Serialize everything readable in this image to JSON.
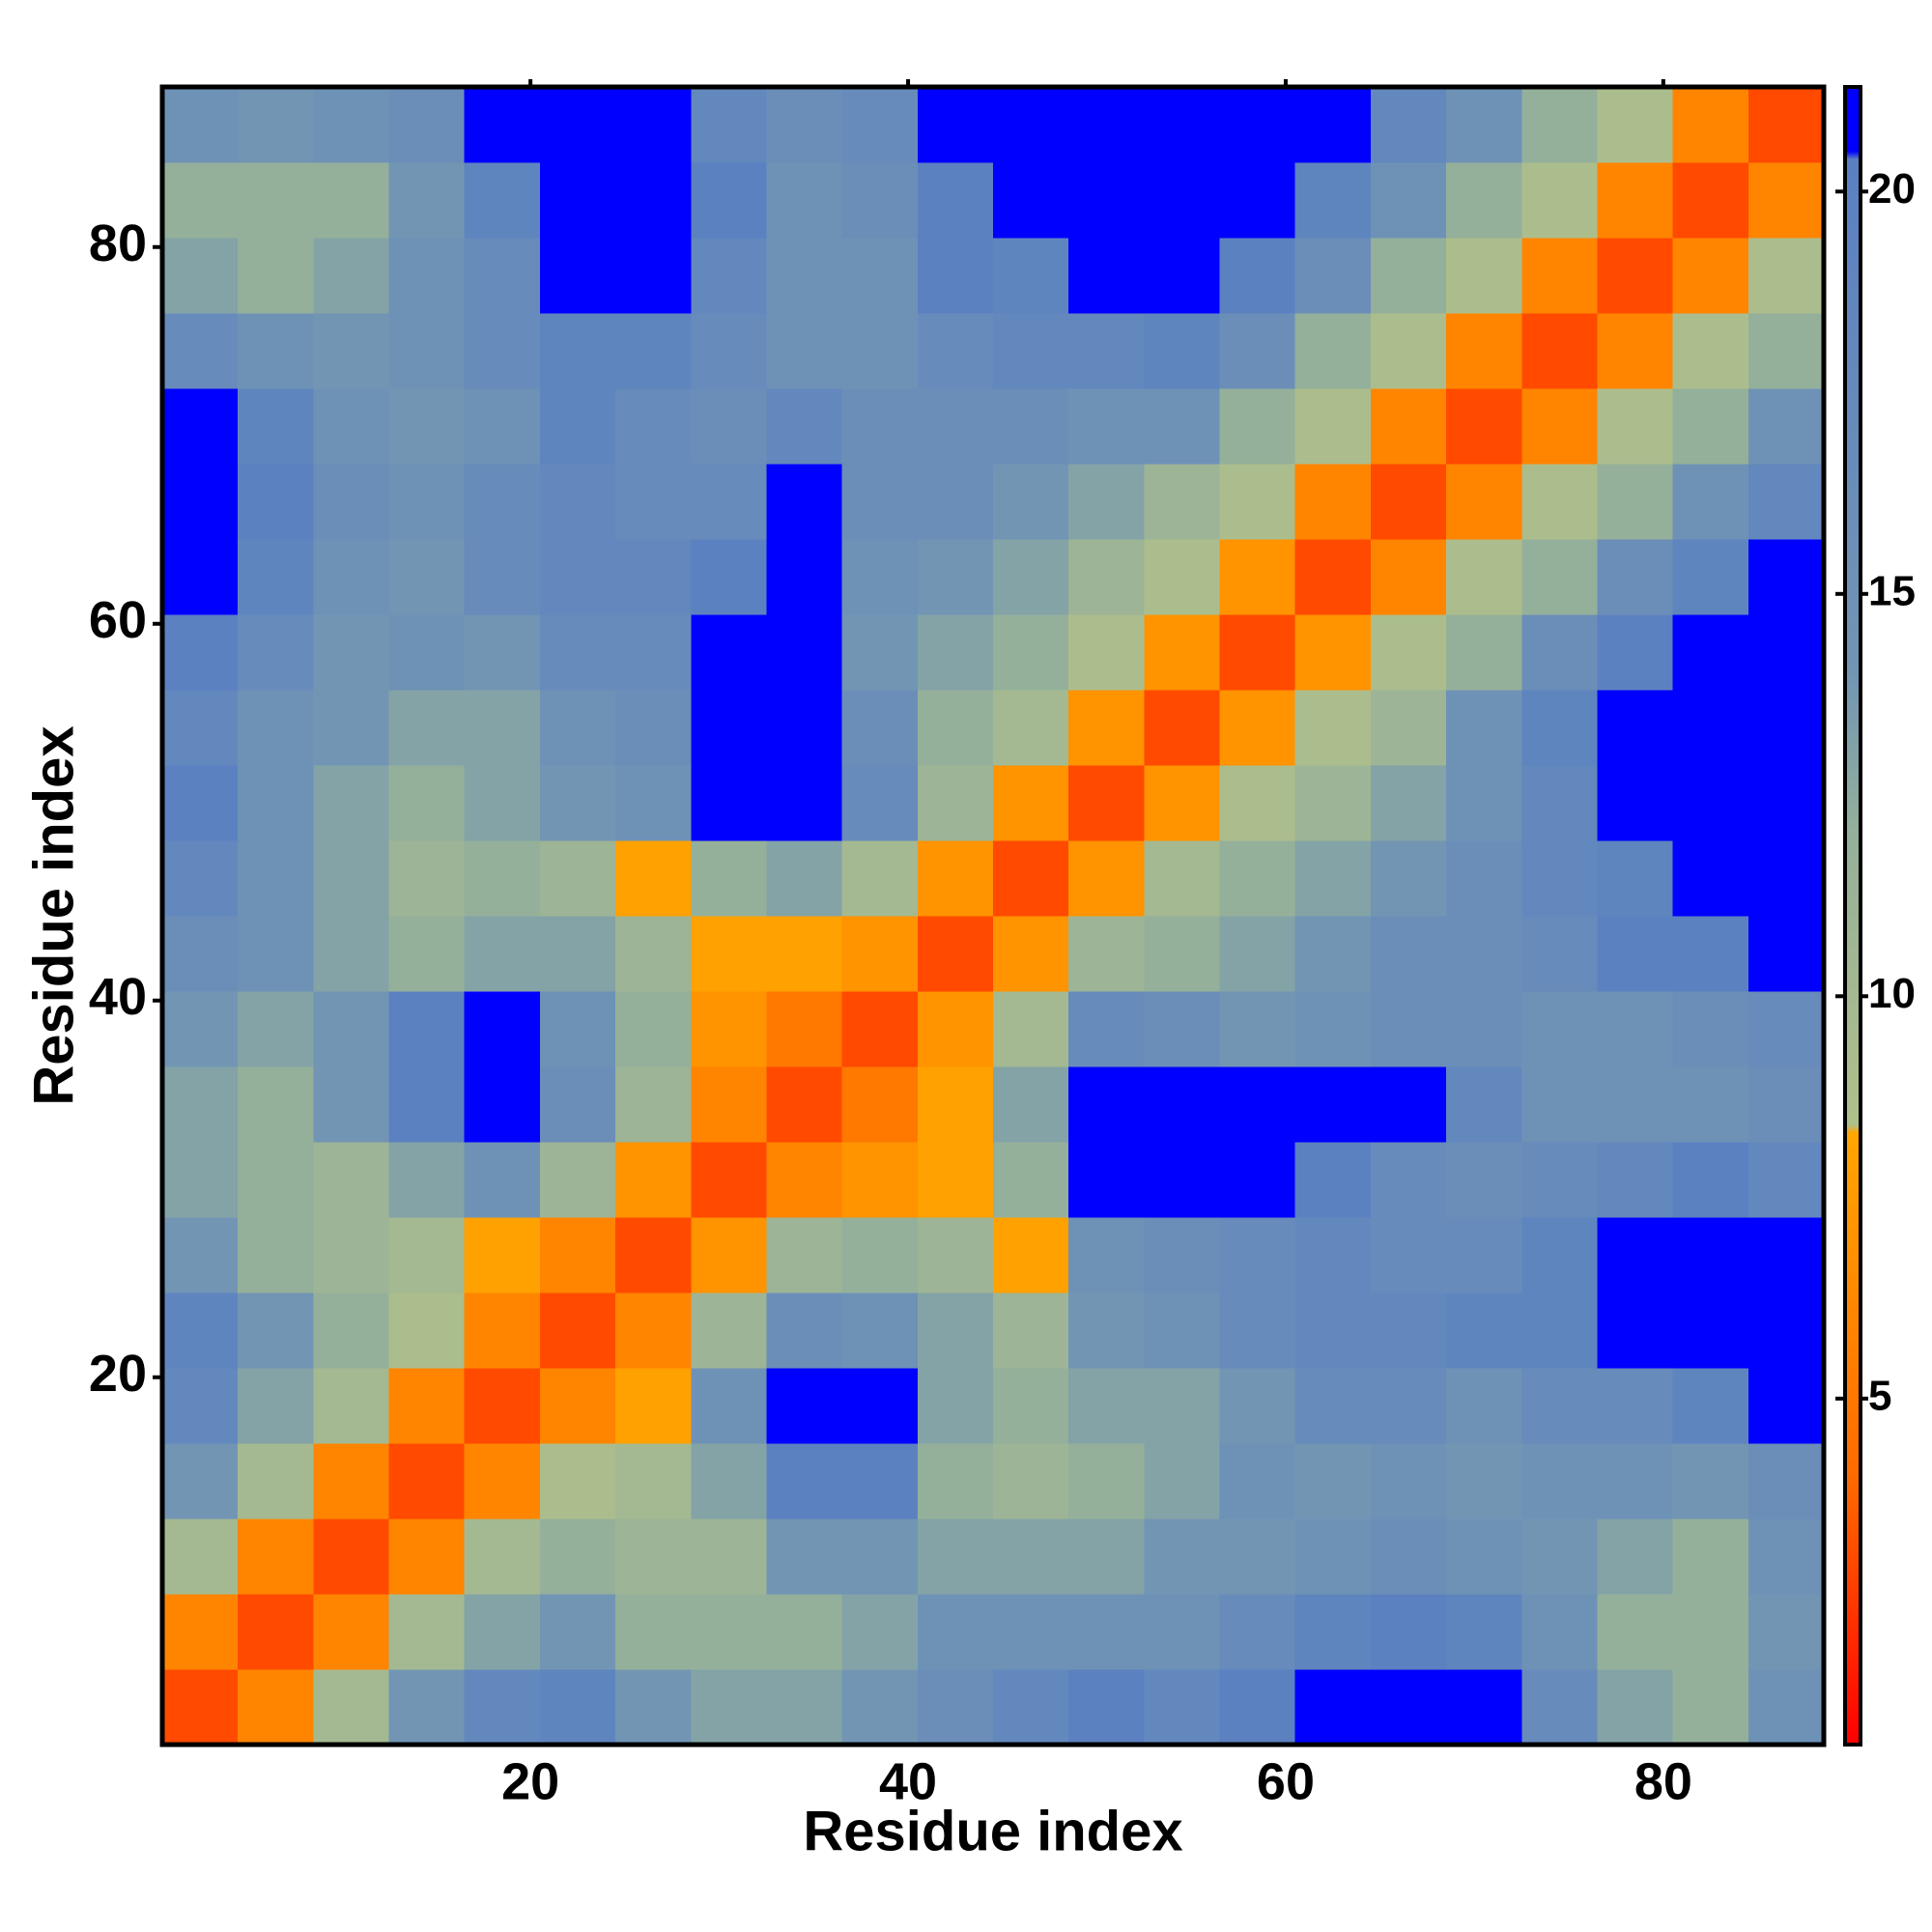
{
  "chart_data": {
    "type": "heatmap",
    "xlabel": "Residue index",
    "ylabel": "Residue index",
    "xlim": [
      0.5,
      88.5
    ],
    "ylim": [
      0.5,
      88.5
    ],
    "xticks": [
      20,
      40,
      60,
      80
    ],
    "yticks": [
      20,
      40,
      60,
      80
    ],
    "xbins": [
      0.5,
      4.5,
      8.5,
      12.5,
      16.5,
      20.5,
      24.5,
      28.5,
      32.5,
      36.5,
      40.5,
      44.5,
      48.5,
      52.5,
      56.5,
      60.5,
      64.5,
      68.5,
      72.5,
      76.5,
      80.5,
      84.5,
      88.5
    ],
    "ybins": [
      0.5,
      4.5,
      8.5,
      12.5,
      16.5,
      20.5,
      24.5,
      28.5,
      32.5,
      36.5,
      40.5,
      44.5,
      48.5,
      52.5,
      56.5,
      60.5,
      64.5,
      68.5,
      72.5,
      76.5,
      80.5,
      84.5,
      88.5
    ],
    "symmetric": true,
    "values": [
      [
        3
      ],
      [
        6,
        3
      ],
      [
        10,
        6,
        3
      ],
      [
        14,
        10,
        6,
        3
      ],
      [
        18,
        13,
        10,
        6,
        3
      ],
      [
        19,
        14,
        12,
        9,
        6,
        3
      ],
      [
        14,
        12,
        11,
        10,
        8,
        6,
        3
      ],
      [
        13,
        12,
        11,
        13,
        15,
        11,
        7,
        3
      ],
      [
        13,
        12,
        14,
        20,
        21,
        16,
        11,
        6,
        3
      ],
      [
        14,
        13,
        14,
        20,
        21,
        15,
        12,
        7,
        5,
        3
      ],
      [
        16,
        15,
        13,
        12,
        13,
        13,
        11,
        8,
        8,
        7,
        3
      ],
      [
        18,
        15,
        13,
        11,
        12,
        11,
        8,
        12,
        13,
        10,
        7,
        3
      ],
      [
        20,
        15,
        13,
        12,
        13,
        14,
        15,
        21,
        21,
        17,
        11,
        7,
        3
      ],
      [
        18,
        15,
        14,
        13,
        13,
        15,
        16,
        21,
        21,
        16,
        12,
        10,
        7,
        3
      ],
      [
        20,
        17,
        14,
        15,
        14,
        17,
        17,
        21,
        21,
        14,
        13,
        12,
        9,
        7,
        3
      ],
      [
        21,
        19,
        15,
        14,
        17,
        18,
        18,
        20,
        21,
        15,
        14,
        13,
        11,
        9,
        7,
        3
      ],
      [
        21,
        20,
        16,
        15,
        17,
        18,
        17,
        17,
        21,
        16,
        16,
        14,
        13,
        11,
        9,
        6,
        3
      ],
      [
        21,
        19,
        15,
        14,
        15,
        19,
        17,
        16,
        18,
        16,
        16,
        16,
        15,
        15,
        12,
        9,
        6,
        3
      ],
      [
        17,
        15,
        14,
        15,
        17,
        19,
        19,
        17,
        15,
        15,
        17,
        18,
        18,
        19,
        16,
        12,
        9,
        6,
        3
      ],
      [
        13,
        12,
        13,
        15,
        17,
        21,
        21,
        18,
        15,
        15,
        20,
        19,
        21,
        21,
        20,
        16,
        12,
        9,
        6,
        3
      ],
      [
        12,
        12,
        12,
        14,
        19,
        21,
        21,
        20,
        15,
        16,
        20,
        21,
        21,
        21,
        21,
        19,
        15,
        12,
        9,
        6,
        3
      ],
      [
        15,
        14,
        15,
        16,
        21,
        21,
        21,
        18,
        16,
        17,
        21,
        21,
        21,
        21,
        21,
        21,
        18,
        15,
        12,
        9,
        6,
        3
      ]
    ],
    "clim": [
      0.7,
      21.3
    ],
    "cticks": [
      5,
      10,
      15,
      20
    ],
    "colorscale": [
      {
        "value": 0.7,
        "color": "#ff0000"
      },
      {
        "value": 4,
        "color": "#ff6a00"
      },
      {
        "value": 8.3,
        "color": "#ffa500"
      },
      {
        "value": 8.4,
        "color": "#b0c08a"
      },
      {
        "value": 12,
        "color": "#95b09a"
      },
      {
        "value": 14,
        "color": "#7295b4"
      },
      {
        "value": 20.4,
        "color": "#5a80c2"
      },
      {
        "value": 20.5,
        "color": "#0000ff"
      },
      {
        "value": 21.3,
        "color": "#0000ff"
      }
    ]
  }
}
